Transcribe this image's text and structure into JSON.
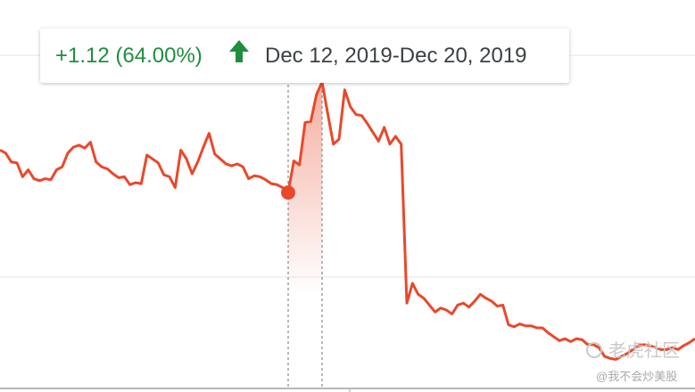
{
  "chart_data": {
    "type": "line",
    "color": "#e8492a",
    "values": [
      2.18,
      2.15,
      2.06,
      2.05,
      1.91,
      1.98,
      1.89,
      1.87,
      1.89,
      1.88,
      1.98,
      2.01,
      2.15,
      2.21,
      2.23,
      2.2,
      2.26,
      2.06,
      2.01,
      1.99,
      1.94,
      1.9,
      1.91,
      1.83,
      1.85,
      1.84,
      2.13,
      2.09,
      2.05,
      1.93,
      1.91,
      1.8,
      2.18,
      2.09,
      1.94,
      2.06,
      2.21,
      2.35,
      2.14,
      2.09,
      2.04,
      2.02,
      2.04,
      2.01,
      1.89,
      1.92,
      1.91,
      1.88,
      1.84,
      1.83,
      1.8,
      1.75,
      2.07,
      2.03,
      2.46,
      2.47,
      2.74,
      2.87,
      2.55,
      2.24,
      2.29,
      2.79,
      2.62,
      2.54,
      2.53,
      2.45,
      2.36,
      2.27,
      2.41,
      2.24,
      2.32,
      2.24,
      0.63,
      0.83,
      0.72,
      0.68,
      0.61,
      0.54,
      0.58,
      0.56,
      0.52,
      0.61,
      0.63,
      0.59,
      0.65,
      0.72,
      0.68,
      0.65,
      0.6,
      0.61,
      0.41,
      0.39,
      0.42,
      0.4,
      0.4,
      0.38,
      0.38,
      0.33,
      0.29,
      0.25,
      0.27,
      0.24,
      0.27,
      0.26,
      0.21,
      0.21,
      0.18,
      0.09,
      0.07,
      0.06,
      0.09,
      0.12,
      0.16,
      0.2,
      0.21,
      0.2,
      0.18,
      0.16,
      0.16,
      0.18,
      0.16,
      0.2,
      0.23,
      0.27
    ],
    "ylim": [
      -0.27,
      3.7
    ],
    "tooltip": {
      "change": "+1.12 (64.00%)",
      "range": "Dec 12, 2019-Dec 20, 2019"
    },
    "watermark": {
      "brand": "老虎社区",
      "author": "@我不会炒美股"
    }
  }
}
